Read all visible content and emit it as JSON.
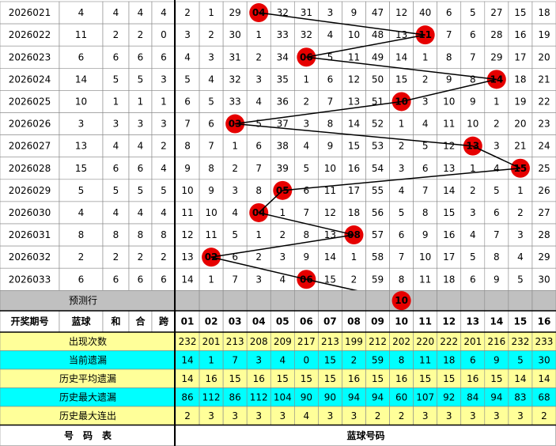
{
  "header": {
    "period": "开奖期号",
    "blue": "蓝球",
    "sum": "和",
    "he": "合",
    "span": "跨",
    "numbers": [
      "01",
      "02",
      "03",
      "04",
      "05",
      "06",
      "07",
      "08",
      "09",
      "10",
      "11",
      "12",
      "13",
      "14",
      "15",
      "16"
    ]
  },
  "rows": [
    {
      "period": "2026021",
      "blue": 4,
      "sum": 4,
      "he": 4,
      "span": 4,
      "cells": [
        2,
        1,
        29,
        "04",
        32,
        31,
        3,
        9,
        47,
        12,
        40,
        6,
        5,
        27,
        15,
        18
      ]
    },
    {
      "period": "2026022",
      "blue": 11,
      "sum": 2,
      "he": 2,
      "span": 0,
      "cells": [
        3,
        2,
        30,
        1,
        33,
        32,
        4,
        10,
        48,
        13,
        "11",
        7,
        6,
        28,
        16,
        19
      ]
    },
    {
      "period": "2026023",
      "blue": 6,
      "sum": 6,
      "he": 6,
      "span": 6,
      "cells": [
        4,
        3,
        31,
        2,
        34,
        "06",
        5,
        11,
        49,
        14,
        1,
        8,
        7,
        29,
        17,
        20
      ]
    },
    {
      "period": "2026024",
      "blue": 14,
      "sum": 5,
      "he": 5,
      "span": 3,
      "cells": [
        5,
        4,
        32,
        3,
        35,
        1,
        6,
        12,
        50,
        15,
        2,
        9,
        8,
        "14",
        18,
        21
      ]
    },
    {
      "period": "2026025",
      "blue": 10,
      "sum": 1,
      "he": 1,
      "span": 1,
      "cells": [
        6,
        5,
        33,
        4,
        36,
        2,
        7,
        13,
        51,
        "10",
        3,
        10,
        9,
        1,
        19,
        22
      ]
    },
    {
      "period": "2026026",
      "blue": 3,
      "sum": 3,
      "he": 3,
      "span": 3,
      "cells": [
        7,
        6,
        "03",
        5,
        37,
        3,
        8,
        14,
        52,
        1,
        4,
        11,
        10,
        2,
        20,
        23
      ]
    },
    {
      "period": "2026027",
      "blue": 13,
      "sum": 4,
      "he": 4,
      "span": 2,
      "cells": [
        8,
        7,
        1,
        6,
        38,
        4,
        9,
        15,
        53,
        2,
        5,
        12,
        "13",
        3,
        21,
        24
      ]
    },
    {
      "period": "2026028",
      "blue": 15,
      "sum": 6,
      "he": 6,
      "span": 4,
      "cells": [
        9,
        8,
        2,
        7,
        39,
        5,
        10,
        16,
        54,
        3,
        6,
        13,
        1,
        4,
        "15",
        25
      ]
    },
    {
      "period": "2026029",
      "blue": 5,
      "sum": 5,
      "he": 5,
      "span": 5,
      "cells": [
        10,
        9,
        3,
        8,
        "05",
        6,
        11,
        17,
        55,
        4,
        7,
        14,
        2,
        5,
        1,
        26
      ]
    },
    {
      "period": "2026030",
      "blue": 4,
      "sum": 4,
      "he": 4,
      "span": 4,
      "cells": [
        11,
        10,
        4,
        "04",
        1,
        7,
        12,
        18,
        56,
        5,
        8,
        15,
        3,
        6,
        2,
        27
      ]
    },
    {
      "period": "2026031",
      "blue": 8,
      "sum": 8,
      "he": 8,
      "span": 8,
      "cells": [
        12,
        11,
        5,
        1,
        2,
        8,
        13,
        "08",
        57,
        6,
        9,
        16,
        4,
        7,
        3,
        28
      ]
    },
    {
      "period": "2026032",
      "blue": 2,
      "sum": 2,
      "he": 2,
      "span": 2,
      "cells": [
        13,
        "02",
        6,
        2,
        3,
        9,
        14,
        1,
        58,
        7,
        10,
        17,
        5,
        8,
        4,
        29
      ]
    },
    {
      "period": "2026033",
      "blue": 6,
      "sum": 6,
      "he": 6,
      "span": 6,
      "cells": [
        14,
        1,
        7,
        3,
        4,
        "06",
        15,
        2,
        59,
        8,
        11,
        18,
        6,
        9,
        5,
        30
      ]
    }
  ],
  "predict": {
    "label": "预测行",
    "ball": "10"
  },
  "stats": [
    {
      "label": "出现次数",
      "values": [
        232,
        201,
        213,
        208,
        209,
        217,
        213,
        199,
        212,
        202,
        220,
        222,
        201,
        216,
        232,
        233
      ]
    },
    {
      "label": "当前遗漏",
      "values": [
        14,
        1,
        7,
        3,
        4,
        0,
        15,
        2,
        59,
        8,
        11,
        18,
        6,
        9,
        5,
        30
      ]
    },
    {
      "label": "历史平均遗漏",
      "values": [
        14,
        16,
        15,
        16,
        15,
        15,
        15,
        16,
        15,
        16,
        15,
        15,
        16,
        15,
        14,
        14
      ]
    },
    {
      "label": "历史最大遗漏",
      "values": [
        86,
        112,
        86,
        112,
        104,
        90,
        90,
        94,
        94,
        60,
        107,
        92,
        84,
        94,
        83,
        68
      ]
    },
    {
      "label": "历史最大连出",
      "values": [
        2,
        3,
        3,
        3,
        3,
        4,
        3,
        3,
        2,
        2,
        3,
        3,
        3,
        3,
        3,
        2
      ]
    }
  ],
  "footer": {
    "left": "号　码　表",
    "right": "蓝球号码"
  }
}
